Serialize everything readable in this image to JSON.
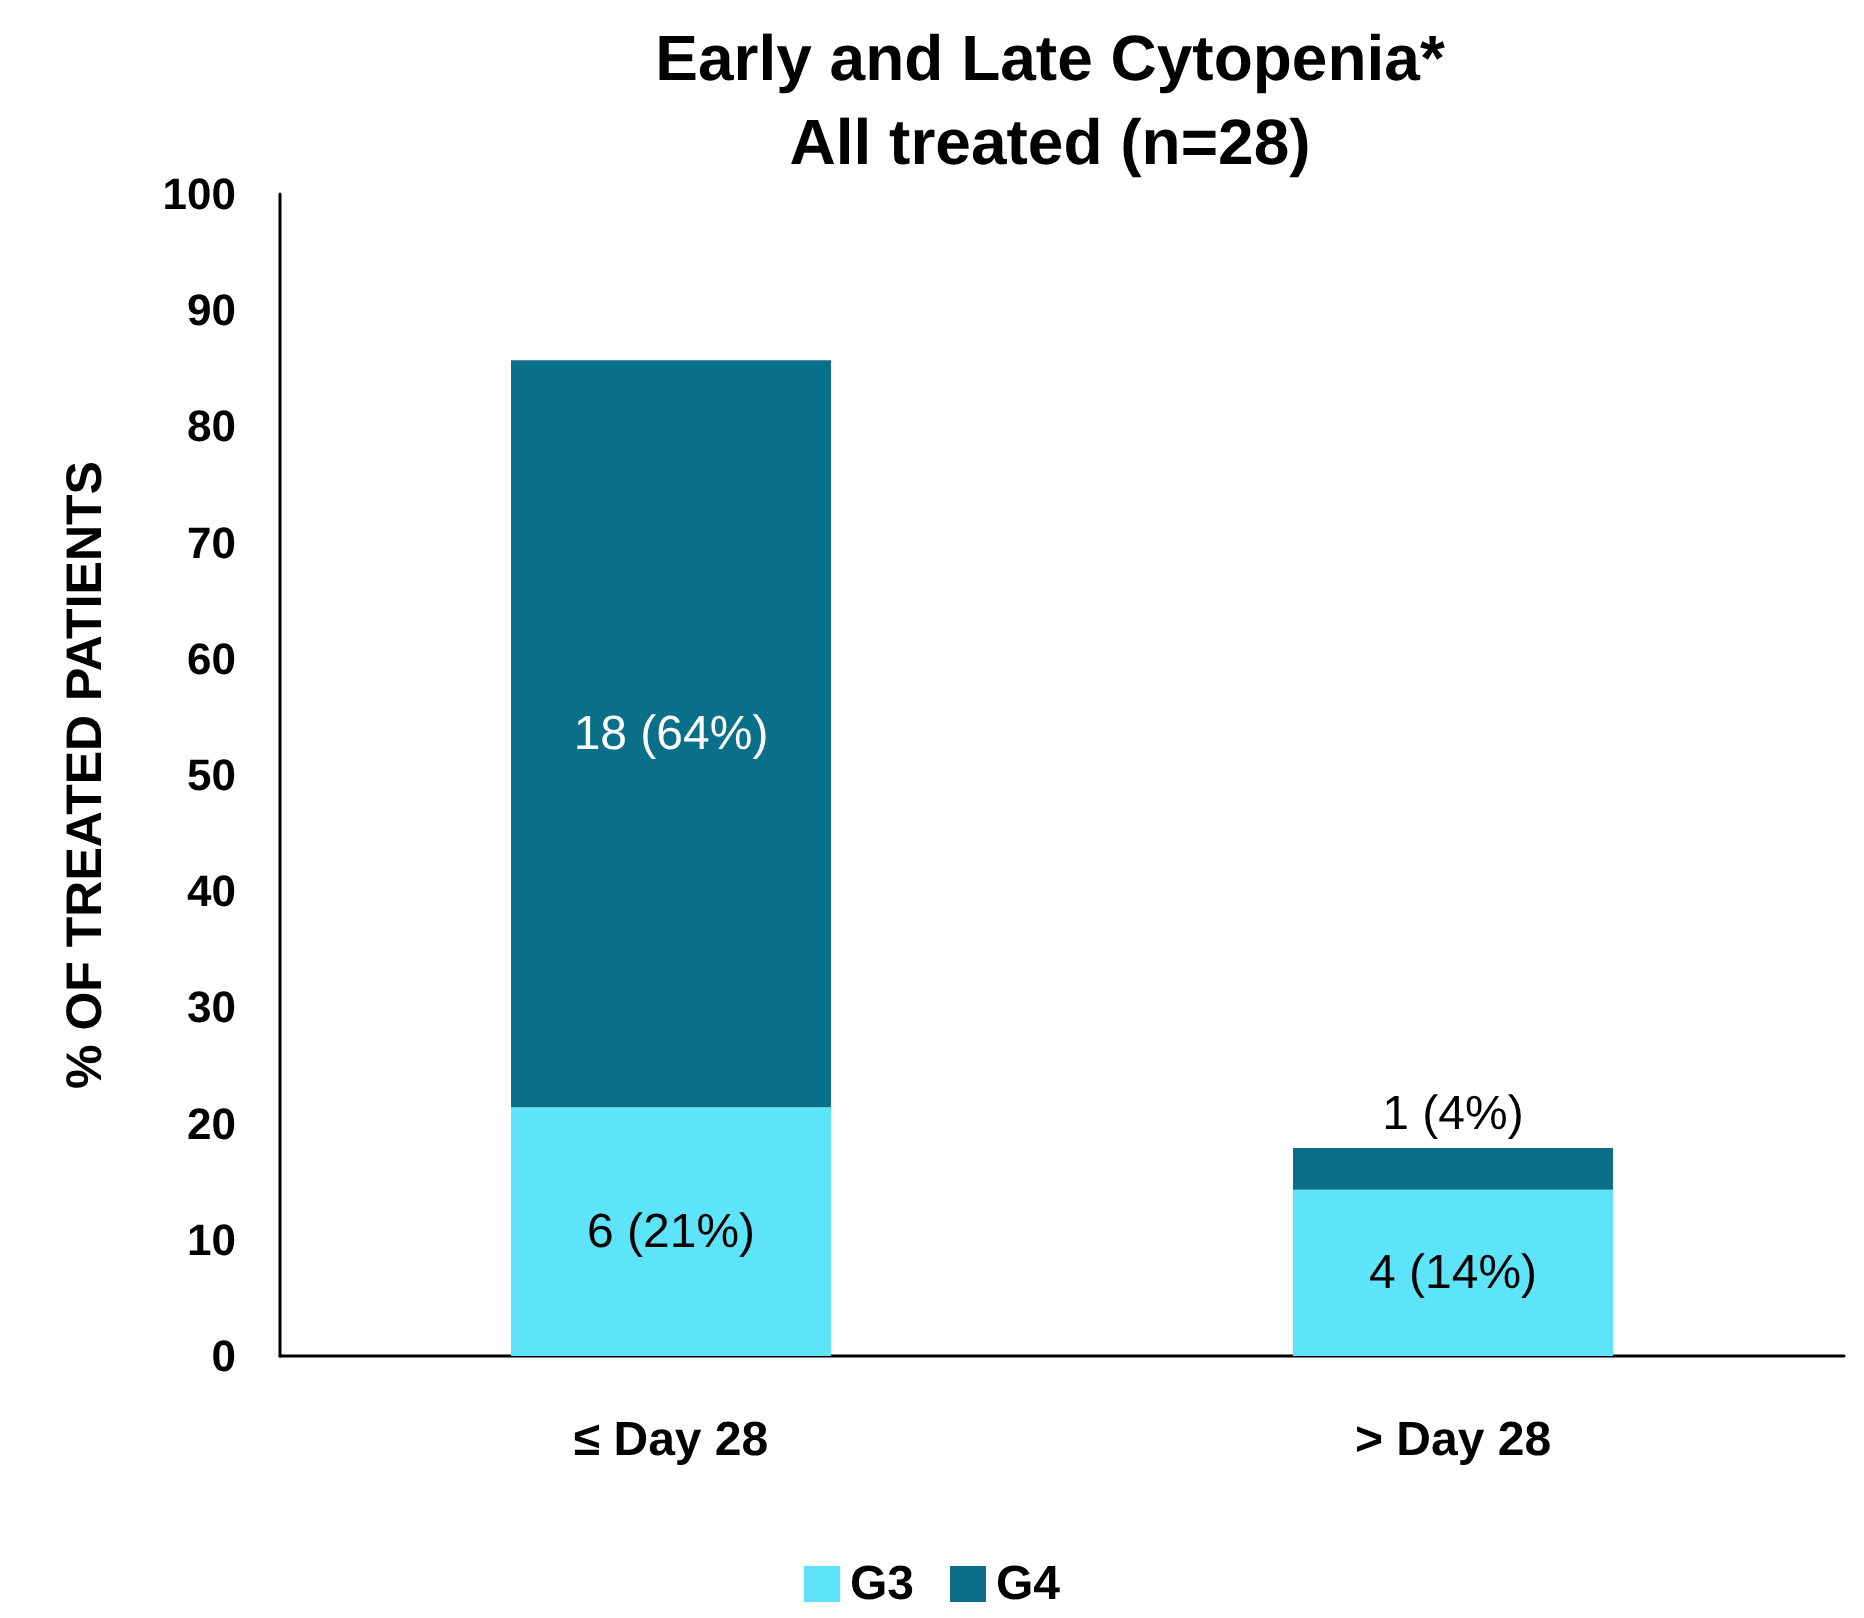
{
  "chart_data": {
    "type": "bar",
    "title": "Early and Late Cytopenia*",
    "subtitle": "All treated (n=28)",
    "ylabel": "% OF TREATED PATIENTS",
    "categories": [
      "≤ Day 28",
      "> Day 28"
    ],
    "stacked": true,
    "series": [
      {
        "name": "G3",
        "color": "#5ee4f8",
        "values": [
          21.4,
          14.3
        ],
        "value_labels": [
          "6 (21%)",
          "4 (14%)"
        ]
      },
      {
        "name": "G4",
        "color": "#0a7089",
        "values": [
          64.3,
          3.6
        ],
        "value_labels": [
          "18 (64%)",
          "1 (4%)"
        ]
      }
    ],
    "ylim": [
      0,
      100
    ],
    "yticks": [
      0,
      10,
      20,
      30,
      40,
      50,
      60,
      70,
      80,
      90,
      100
    ],
    "grid": false,
    "legend": "bottom"
  }
}
